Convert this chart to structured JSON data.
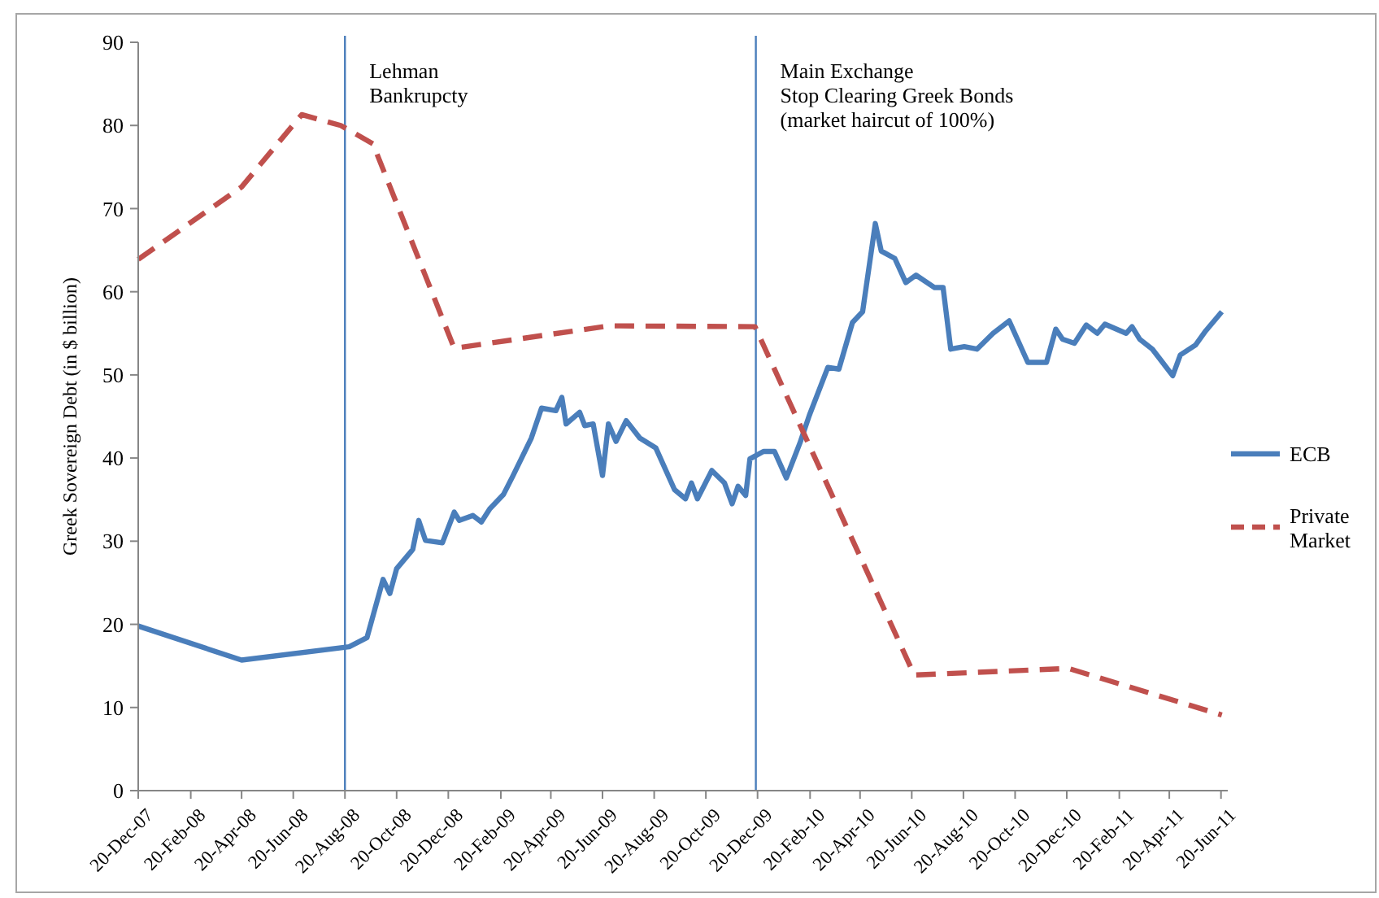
{
  "chart_data": {
    "type": "line",
    "ylabel": "Greek Sovereign Debt (in $ billion)",
    "xlim": [
      "2007-12-20",
      "2011-06-28"
    ],
    "ylim": [
      0,
      90
    ],
    "yticks": [
      0,
      10,
      20,
      30,
      40,
      50,
      60,
      70,
      80,
      90
    ],
    "xticks": [
      {
        "value": "2007-12-20",
        "label": "20-Dec-07"
      },
      {
        "value": "2008-02-20",
        "label": "20-Feb-08"
      },
      {
        "value": "2008-04-20",
        "label": "20-Apr-08"
      },
      {
        "value": "2008-06-20",
        "label": "20-Jun-08"
      },
      {
        "value": "2008-08-20",
        "label": "20-Aug-08"
      },
      {
        "value": "2008-10-20",
        "label": "20-Oct-08"
      },
      {
        "value": "2008-12-20",
        "label": "20-Dec-08"
      },
      {
        "value": "2009-02-20",
        "label": "20-Feb-09"
      },
      {
        "value": "2009-04-20",
        "label": "20-Apr-09"
      },
      {
        "value": "2009-06-20",
        "label": "20-Jun-09"
      },
      {
        "value": "2009-08-20",
        "label": "20-Aug-09"
      },
      {
        "value": "2009-10-20",
        "label": "20-Oct-09"
      },
      {
        "value": "2009-12-20",
        "label": "20-Dec-09"
      },
      {
        "value": "2010-02-20",
        "label": "20-Feb-10"
      },
      {
        "value": "2010-04-20",
        "label": "20-Apr-10"
      },
      {
        "value": "2010-06-20",
        "label": "20-Jun-10"
      },
      {
        "value": "2010-08-20",
        "label": "20-Aug-10"
      },
      {
        "value": "2010-10-20",
        "label": "20-Oct-10"
      },
      {
        "value": "2010-12-20",
        "label": "20-Dec-10"
      },
      {
        "value": "2011-02-20",
        "label": "20-Feb-11"
      },
      {
        "value": "2011-04-20",
        "label": "20-Apr-11"
      },
      {
        "value": "2011-06-20",
        "label": "20-Jun-11"
      }
    ],
    "grid": false,
    "legend": "right",
    "marker": "none",
    "ref_lines": [
      {
        "axis": "x",
        "value": "2008-08-20",
        "label": "Lehman\nBankrupcty",
        "color": "#4a7ebb"
      },
      {
        "axis": "x",
        "value": "2009-12-18",
        "label": "Main Exchange\nStop Clearing Greek Bonds\n(market haircut of 100%)",
        "color": "#4a7ebb"
      }
    ],
    "series": [
      {
        "name": "ECB",
        "color": "#4a7ebb",
        "line_style": "solid",
        "x": [
          "2007-12-20",
          "2008-04-20",
          "2008-08-25",
          "2008-09-15",
          "2008-10-04",
          "2008-10-12",
          "2008-10-20",
          "2008-11-08",
          "2008-11-15",
          "2008-11-23",
          "2008-12-13",
          "2008-12-27",
          "2009-01-02",
          "2009-01-18",
          "2009-01-28",
          "2009-02-07",
          "2009-02-23",
          "2009-03-06",
          "2009-03-28",
          "2009-04-09",
          "2009-04-26",
          "2009-05-03",
          "2009-05-08",
          "2009-05-24",
          "2009-05-30",
          "2009-06-09",
          "2009-06-20",
          "2009-06-27",
          "2009-07-06",
          "2009-07-18",
          "2009-08-03",
          "2009-08-22",
          "2009-09-13",
          "2009-09-26",
          "2009-10-03",
          "2009-10-10",
          "2009-10-27",
          "2009-11-11",
          "2009-11-20",
          "2009-11-27",
          "2009-12-06",
          "2009-12-11",
          "2009-12-27",
          "2010-01-09",
          "2010-01-23",
          "2010-02-08",
          "2010-02-19",
          "2010-03-13",
          "2010-03-26",
          "2010-04-11",
          "2010-04-23",
          "2010-05-08",
          "2010-05-15",
          "2010-05-31",
          "2010-06-13",
          "2010-06-25",
          "2010-07-17",
          "2010-07-27",
          "2010-08-05",
          "2010-08-21",
          "2010-09-05",
          "2010-09-24",
          "2010-10-13",
          "2010-11-04",
          "2010-11-26",
          "2010-12-07",
          "2010-12-15",
          "2010-12-29",
          "2011-01-12",
          "2011-01-25",
          "2011-02-03",
          "2011-02-28",
          "2011-03-07",
          "2011-03-16",
          "2011-03-31",
          "2011-04-12",
          "2011-04-24",
          "2011-05-03",
          "2011-05-21",
          "2011-06-02",
          "2011-06-21"
        ],
        "values": [
          19.8,
          15.7,
          17.3,
          18.4,
          25.4,
          23.7,
          26.7,
          29.0,
          32.5,
          30.1,
          29.8,
          33.5,
          32.5,
          33.1,
          32.3,
          33.9,
          35.6,
          37.8,
          42.4,
          46.0,
          45.7,
          47.3,
          44.1,
          45.5,
          43.9,
          44.1,
          37.9,
          44.1,
          42.0,
          44.5,
          42.4,
          41.2,
          36.2,
          35.1,
          37.0,
          35.1,
          38.5,
          37.0,
          34.5,
          36.6,
          35.5,
          39.9,
          40.8,
          40.8,
          37.6,
          41.8,
          45.1,
          50.9,
          50.7,
          56.3,
          57.6,
          68.2,
          64.9,
          64.0,
          61.1,
          62.0,
          60.5,
          60.5,
          53.1,
          53.4,
          53.1,
          55.0,
          56.5,
          51.5,
          51.5,
          55.5,
          54.3,
          53.8,
          56.0,
          55.0,
          56.1,
          55.0,
          55.8,
          54.3,
          53.1,
          51.5,
          49.9,
          52.4,
          53.6,
          55.3,
          57.6
        ]
      },
      {
        "name": "Private Market",
        "color": "#c0504d",
        "line_style": "dashed",
        "x": [
          "2007-12-20",
          "2008-04-20",
          "2008-06-30",
          "2008-08-15",
          "2008-09-22",
          "2008-12-27",
          "2009-06-28",
          "2009-12-17",
          "2010-06-23",
          "2010-12-22",
          "2011-06-21"
        ],
        "values": [
          63.9,
          72.6,
          81.3,
          80.0,
          77.8,
          53.2,
          55.9,
          55.8,
          13.9,
          14.7,
          9.1
        ]
      }
    ]
  }
}
